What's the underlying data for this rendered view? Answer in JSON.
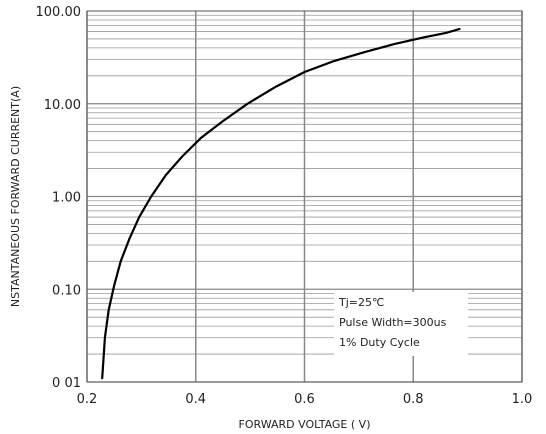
{
  "chart_data": {
    "type": "line",
    "title": "",
    "xlabel": "FORWARD VOLTAGE ( V)",
    "ylabel": "NSTANTANEOUS FORWARD CURRENT(A)",
    "xlim": [
      0.2,
      1.0
    ],
    "ylim": [
      0.01,
      100
    ],
    "yscale": "log",
    "grid": true,
    "x_ticks": [
      0.2,
      0.4,
      0.6,
      0.8,
      1.0
    ],
    "x_tick_labels": [
      "0.2",
      "0.4",
      "0.6",
      "0.8",
      "1.0"
    ],
    "y_ticks": [
      0.01,
      0.1,
      1,
      10,
      100
    ],
    "y_tick_labels": [
      "0 01",
      "0.10",
      "1.00",
      "10.00",
      "100.00"
    ],
    "series": [
      {
        "color": "#000000",
        "x": [
          0.228,
          0.233,
          0.24,
          0.25,
          0.262,
          0.278,
          0.296,
          0.318,
          0.345,
          0.375,
          0.41,
          0.45,
          0.495,
          0.545,
          0.6,
          0.655,
          0.71,
          0.765,
          0.82,
          0.86,
          0.885
        ],
        "y": [
          0.011,
          0.03,
          0.06,
          0.11,
          0.2,
          0.35,
          0.6,
          1.0,
          1.7,
          2.7,
          4.3,
          6.5,
          10,
          15,
          22,
          29,
          36,
          44,
          52,
          58,
          64
        ]
      }
    ],
    "annotations": [
      "Tj=25℃",
      "Pulse Width=300us",
      "1% Duty Cycle"
    ]
  }
}
